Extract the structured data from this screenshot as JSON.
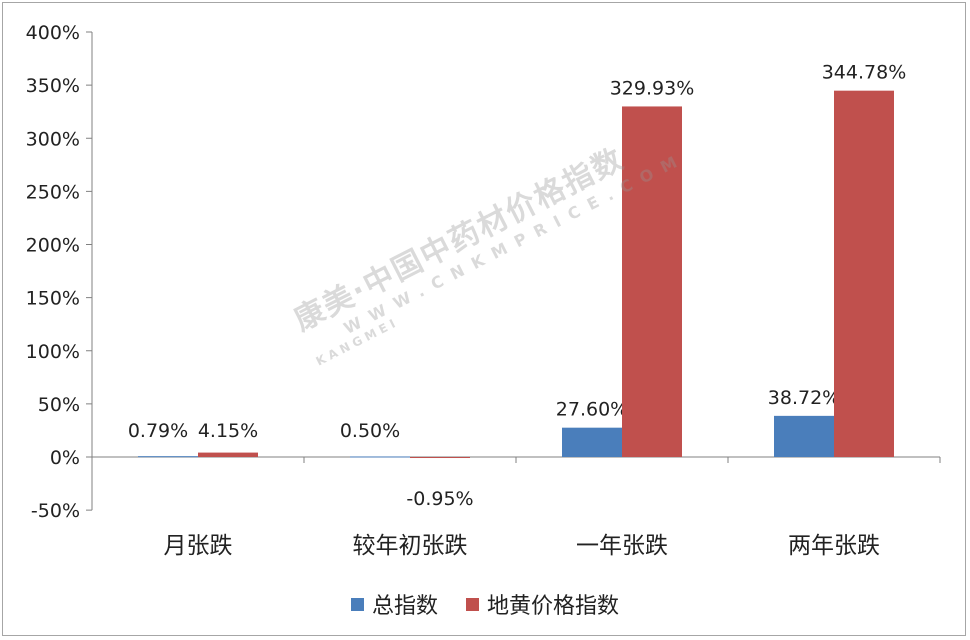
{
  "chart_data": {
    "type": "bar",
    "categories": [
      "月张跌",
      "较年初张跌",
      "一年张跌",
      "两年张跌"
    ],
    "series": [
      {
        "name": "总指数",
        "values": [
          0.79,
          0.5,
          27.6,
          38.72
        ],
        "labels": [
          "0.79%",
          "0.50%",
          "27.60%",
          "38.72%"
        ],
        "color": "#4a7ebb"
      },
      {
        "name": "地黄价格指数",
        "values": [
          4.15,
          -0.95,
          329.93,
          344.78
        ],
        "labels": [
          "4.15%",
          "-0.95%",
          "329.93%",
          "344.78%"
        ],
        "color": "#c0504d"
      }
    ],
    "ylim": [
      -50,
      400
    ],
    "yticks": [
      -50,
      0,
      50,
      100,
      150,
      200,
      250,
      300,
      350,
      400
    ],
    "ytick_labels": [
      "-50%",
      "0%",
      "50%",
      "100%",
      "150%",
      "200%",
      "250%",
      "300%",
      "350%",
      "400%"
    ],
    "grid": false,
    "legend": "bottom"
  },
  "watermark": {
    "main": "康美·中国中药材价格指数",
    "sub": "WWW.CNKMPRICE.COM",
    "brand": "KANGMEI"
  },
  "colors": {
    "axis": "#808080",
    "text": "#222222"
  }
}
